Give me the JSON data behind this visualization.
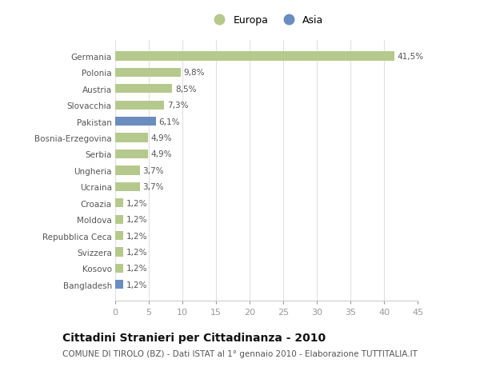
{
  "categories": [
    "Germania",
    "Polonia",
    "Austria",
    "Slovacchia",
    "Pakistan",
    "Bosnia-Erzegovina",
    "Serbia",
    "Ungheria",
    "Ucraina",
    "Croazia",
    "Moldova",
    "Repubblica Ceca",
    "Svizzera",
    "Kosovo",
    "Bangladesh"
  ],
  "values": [
    41.5,
    9.8,
    8.5,
    7.3,
    6.1,
    4.9,
    4.9,
    3.7,
    3.7,
    1.2,
    1.2,
    1.2,
    1.2,
    1.2,
    1.2
  ],
  "labels": [
    "41,5%",
    "9,8%",
    "8,5%",
    "7,3%",
    "6,1%",
    "4,9%",
    "4,9%",
    "3,7%",
    "3,7%",
    "1,2%",
    "1,2%",
    "1,2%",
    "1,2%",
    "1,2%",
    "1,2%"
  ],
  "colors": [
    "#b5c98e",
    "#b5c98e",
    "#b5c98e",
    "#b5c98e",
    "#6b8cbf",
    "#b5c98e",
    "#b5c98e",
    "#b5c98e",
    "#b5c98e",
    "#b5c98e",
    "#b5c98e",
    "#b5c98e",
    "#b5c98e",
    "#b5c98e",
    "#6b8cbf"
  ],
  "legend_europa_color": "#b5c98e",
  "legend_asia_color": "#6b8cbf",
  "xlim": [
    0,
    45
  ],
  "xticks": [
    0,
    5,
    10,
    15,
    20,
    25,
    30,
    35,
    40,
    45
  ],
  "title": "Cittadini Stranieri per Cittadinanza - 2010",
  "subtitle": "COMUNE DI TIROLO (BZ) - Dati ISTAT al 1° gennaio 2010 - Elaborazione TUTTITALIA.IT",
  "background_color": "#ffffff",
  "grid_color": "#e0e0e0",
  "bar_height": 0.55,
  "label_fontsize": 7.5,
  "ytick_fontsize": 7.5,
  "xtick_fontsize": 8,
  "title_fontsize": 10,
  "subtitle_fontsize": 7.5
}
